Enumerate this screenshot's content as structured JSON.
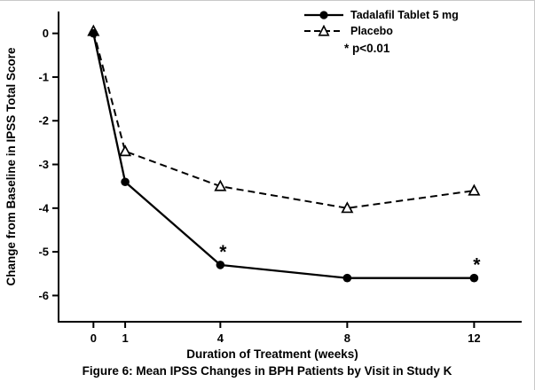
{
  "chart_data": {
    "type": "line",
    "title": "",
    "xlabel": "Duration of Treatment (weeks)",
    "ylabel": "Change from Baseline in IPSS Total Score",
    "x": [
      0,
      1,
      4,
      8,
      12
    ],
    "xticks": [
      "0",
      "1",
      "4",
      "8",
      "12"
    ],
    "yticks": [
      "0",
      "-1",
      "-2",
      "-3",
      "-4",
      "-5",
      "-6"
    ],
    "ytick_values": [
      0,
      -1,
      -2,
      -3,
      -4,
      -5,
      -6
    ],
    "xtick_values": [
      0,
      1,
      4,
      8,
      12
    ],
    "xlim": [
      -1.1,
      13.5
    ],
    "ylim": [
      -6.6,
      0.5
    ],
    "grid": false,
    "legend_position": "top-right",
    "annotation": "* p<0.01",
    "series": [
      {
        "name": "Tadalafil Tablet 5 mg",
        "line": "solid",
        "marker": "filled-circle",
        "color": "#000000",
        "values": [
          0,
          -3.4,
          -5.3,
          -5.6,
          -5.6
        ],
        "significant_weeks": [
          4,
          12
        ]
      },
      {
        "name": "Placebo",
        "line": "dashed",
        "marker": "open-triangle",
        "color": "#000000",
        "values": [
          0.05,
          -2.7,
          -3.5,
          -4.0,
          -3.6
        ]
      }
    ],
    "caption": "Figure 6: Mean IPSS Changes in BPH Patients by Visit in Study K"
  }
}
